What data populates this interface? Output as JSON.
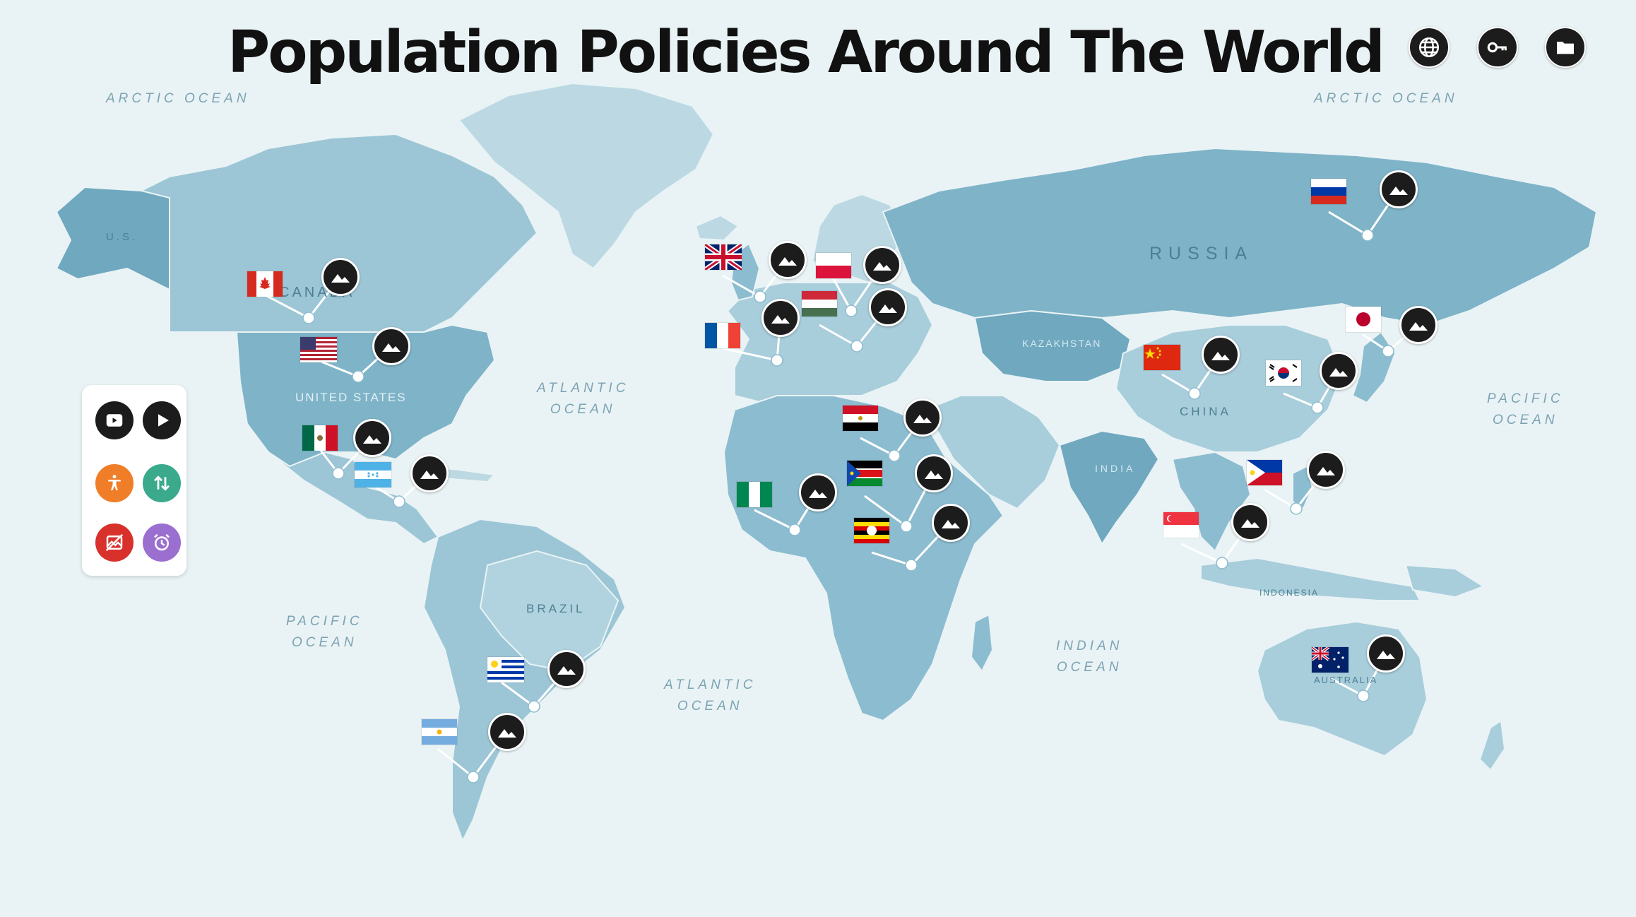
{
  "title": "Population Policies Around The World",
  "top_buttons": [
    {
      "name": "globe-button",
      "icon": "globe-icon"
    },
    {
      "name": "key-button",
      "icon": "key-icon"
    },
    {
      "name": "folder-button",
      "icon": "folder-icon"
    }
  ],
  "oceans": {
    "arctic_left": "ARCTIC OCEAN",
    "arctic_right": "ARCTIC OCEAN",
    "atlantic_north": "ATLANTIC\nOCEAN",
    "atlantic_south": "ATLANTIC\nOCEAN",
    "pacific_east": "PACIFIC\nOCEAN",
    "pacific_southwest": "PACIFIC\nOCEAN",
    "indian": "INDIAN\nOCEAN"
  },
  "countries": {
    "us_short": "U.S.",
    "canada": "CANADA",
    "united_states": "UNITED STATES",
    "brazil": "BRAZIL",
    "russia": "RUSSIA",
    "kazakhstan": "KAZAKHSTAN",
    "china": "CHINA",
    "india": "INDIA",
    "australia": "AUSTRALIA",
    "indonesia": "INDONESIA"
  },
  "toolbar": [
    {
      "name": "video-button",
      "icon": "video-icon",
      "color": "#1c1c1c"
    },
    {
      "name": "play-button",
      "icon": "play-icon",
      "color": "#1c1c1c"
    },
    {
      "name": "accessibility-button",
      "icon": "accessibility-icon",
      "color": "#f07d28"
    },
    {
      "name": "sort-button",
      "icon": "up-down-arrows-icon",
      "color": "#3aa98c"
    },
    {
      "name": "no-image-button",
      "icon": "image-off-icon",
      "color": "#d8312c"
    },
    {
      "name": "timer-button",
      "icon": "alarm-clock-icon",
      "color": "#9b6fd0"
    }
  ],
  "markers": [
    {
      "country": "canada",
      "flag": "canada-flag",
      "icon": "image-icon"
    },
    {
      "country": "united-states",
      "flag": "us-flag",
      "icon": "image-icon"
    },
    {
      "country": "mexico",
      "flag": "mexico-flag",
      "icon": "image-icon"
    },
    {
      "country": "honduras",
      "flag": "honduras-flag",
      "icon": "image-icon"
    },
    {
      "country": "uruguay",
      "flag": "uruguay-flag",
      "icon": "image-icon"
    },
    {
      "country": "argentina",
      "flag": "argentina-flag",
      "icon": "image-icon"
    },
    {
      "country": "united-kingdom",
      "flag": "uk-flag",
      "icon": "image-icon"
    },
    {
      "country": "france",
      "flag": "france-flag",
      "icon": "image-icon"
    },
    {
      "country": "poland",
      "flag": "poland-flag",
      "icon": "image-icon"
    },
    {
      "country": "hungary",
      "flag": "hungary-flag",
      "icon": "image-icon"
    },
    {
      "country": "egypt",
      "flag": "egypt-flag",
      "icon": "image-icon"
    },
    {
      "country": "nigeria",
      "flag": "nigeria-flag",
      "icon": "image-icon"
    },
    {
      "country": "south-sudan",
      "flag": "south-sudan-flag",
      "icon": "image-icon"
    },
    {
      "country": "uganda",
      "flag": "uganda-flag",
      "icon": "image-icon"
    },
    {
      "country": "russia",
      "flag": "russia-flag",
      "icon": "image-icon"
    },
    {
      "country": "japan",
      "flag": "japan-flag",
      "icon": "image-icon"
    },
    {
      "country": "china",
      "flag": "china-flag",
      "icon": "image-icon"
    },
    {
      "country": "south-korea",
      "flag": "south-korea-flag",
      "icon": "image-icon"
    },
    {
      "country": "philippines",
      "flag": "philippines-flag",
      "icon": "image-icon"
    },
    {
      "country": "singapore",
      "flag": "singapore-flag",
      "icon": "image-icon"
    },
    {
      "country": "australia",
      "flag": "australia-flag",
      "icon": "image-icon"
    }
  ],
  "colors": {
    "ocean": "#e9f3f5",
    "land_light": "#bcd9e3",
    "land_mid": "#8cbccf",
    "land_dark": "#6fa8bf",
    "marker": "#1c1c1c"
  }
}
